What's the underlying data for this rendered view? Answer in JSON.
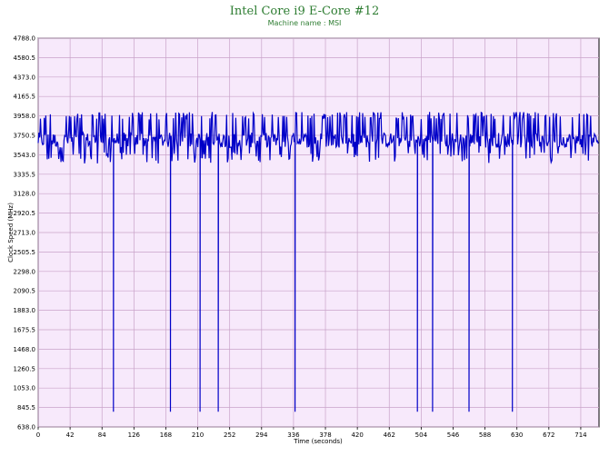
{
  "chart_data": {
    "type": "line",
    "title": "Intel Core i9 E-Core #12",
    "subtitle": "Machine name : MSI",
    "xlabel": "Time (seconds)",
    "ylabel": "Clock Speed (MHz)",
    "xlim": [
      0,
      738
    ],
    "ylim": [
      638.0,
      4788.0
    ],
    "x_ticks": [
      "0",
      "42",
      "84",
      "126",
      "168",
      "210",
      "252",
      "294",
      "336",
      "378",
      "420",
      "462",
      "504",
      "546",
      "588",
      "630",
      "672",
      "714"
    ],
    "y_ticks": [
      "4788.0",
      "4580.5",
      "4373.0",
      "4165.5",
      "3958.0",
      "3750.5",
      "3543.0",
      "3335.5",
      "3128.0",
      "2920.5",
      "2713.0",
      "2505.5",
      "2298.0",
      "2090.5",
      "1883.0",
      "1675.5",
      "1468.0",
      "1260.5",
      "1053.0",
      "845.5",
      "638.0"
    ],
    "grid": true,
    "colors": {
      "line": "#0000c8",
      "plot_bg": "#f7e9fb",
      "grid": "#c9a3c9",
      "title": "#2e7d32"
    },
    "series": [
      {
        "baseline_mhz": 3700,
        "typical_range_mhz": [
          3450,
          4000
        ],
        "dips": [
          {
            "t": 99,
            "mhz": 800
          },
          {
            "t": 174,
            "mhz": 800
          },
          {
            "t": 213,
            "mhz": 800
          },
          {
            "t": 237,
            "mhz": 800
          },
          {
            "t": 338,
            "mhz": 800
          },
          {
            "t": 499,
            "mhz": 800
          },
          {
            "t": 519,
            "mhz": 800
          },
          {
            "t": 567,
            "mhz": 800
          },
          {
            "t": 624,
            "mhz": 800
          }
        ]
      }
    ]
  }
}
